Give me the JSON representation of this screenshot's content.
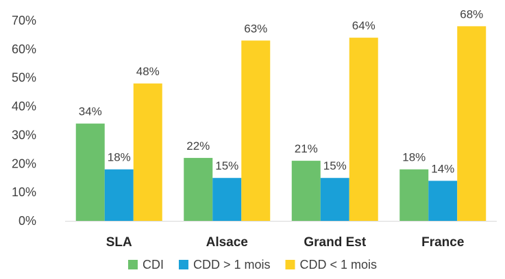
{
  "chart_data": {
    "type": "bar",
    "title": "",
    "xlabel": "",
    "ylabel": "",
    "categories": [
      "SLA",
      "Alsace",
      "Grand Est",
      "France"
    ],
    "series": [
      {
        "name": "CDI",
        "color": "#6cc16c",
        "values": [
          34,
          22,
          21,
          18
        ],
        "labels": [
          "34%",
          "22%",
          "21%",
          "18%"
        ]
      },
      {
        "name": "CDD > 1 mois",
        "color": "#1aa0d8",
        "values": [
          18,
          15,
          15,
          14
        ],
        "labels": [
          "18%",
          "15%",
          "15%",
          "14%"
        ]
      },
      {
        "name": "CDD < 1 mois",
        "color": "#fdd024",
        "values": [
          48,
          63,
          64,
          68
        ],
        "labels": [
          "48%",
          "63%",
          "64%",
          "68%"
        ]
      }
    ],
    "ylim": [
      0,
      70
    ],
    "yticks": [
      0,
      10,
      20,
      30,
      40,
      50,
      60,
      70
    ],
    "yticklabels": [
      "0%",
      "10%",
      "20%",
      "30%",
      "40%",
      "50%",
      "60%",
      "70%"
    ],
    "grid": false,
    "legend": "bottom-center"
  }
}
